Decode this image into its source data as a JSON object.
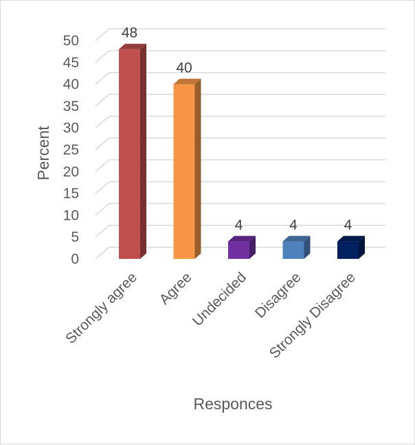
{
  "chart_data": {
    "type": "bar",
    "categories": [
      "Strongly agree",
      "Agree",
      "Undecided",
      "Disagree",
      "Strongly Disagree"
    ],
    "values": [
      48,
      40,
      4,
      4,
      4
    ],
    "data_labels": [
      "48",
      "40",
      "4",
      "4",
      "4"
    ],
    "colors": [
      "#c0504d",
      "#f79646",
      "#7030a0",
      "#4f81bd",
      "#002060"
    ],
    "xlabel": "Responces",
    "ylabel": "Percent",
    "ylim": [
      0,
      50
    ],
    "yticks": [
      0,
      5,
      10,
      15,
      20,
      25,
      30,
      35,
      40,
      45,
      50
    ],
    "grid": true,
    "legend": "none",
    "style": "3d-column"
  }
}
